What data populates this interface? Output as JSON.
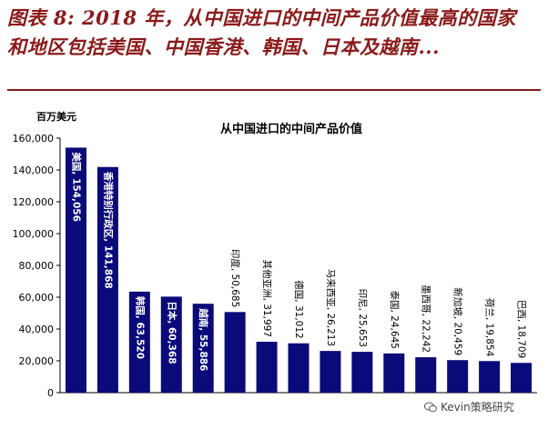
{
  "caption": {
    "line1": "图表 8: 2018 年，从中国进口的中间产品价值最高的国家",
    "line2": "和地区包括美国、中国香港、韩国、日本及越南..."
  },
  "watermark": {
    "text": "Kevin策略研究",
    "icon": "wechat-icon"
  },
  "colors": {
    "bar": "#0b0a7a",
    "caption": "#8b1a1a",
    "axis": "#000000"
  },
  "chart_data": {
    "type": "bar",
    "title": "从中国进口的中间产品价值",
    "ylabel": "百万美元",
    "xlabel": "",
    "ylim": [
      0,
      160000
    ],
    "yticks": [
      "0",
      "20,000",
      "40,000",
      "60,000",
      "80,000",
      "100,000",
      "120,000",
      "140,000",
      "160,000"
    ],
    "categories": [
      "美国",
      "香港特别行政区",
      "韩国",
      "日本",
      "越南",
      "印度",
      "其他亚洲",
      "德国",
      "马来西亚",
      "印尼",
      "泰国",
      "墨西哥",
      "新加坡",
      "荷兰",
      "巴西"
    ],
    "values": [
      154056,
      141868,
      63520,
      60368,
      55886,
      50685,
      31997,
      31012,
      26213,
      25653,
      24645,
      22242,
      20459,
      19854,
      18709
    ],
    "labels": [
      "美国, 154,056",
      "香港特别行政区, 141,868",
      "韩国, 63,520",
      "日本, 60,368",
      "越南, 55,886",
      "印度, 50,685",
      "其他亚洲, 31,997",
      "德国, 31,012",
      "马来西亚, 26,213",
      "印尼, 25,653",
      "泰国, 24,645",
      "墨西哥, 22,242",
      "新加坡, 20,459",
      "荷兰, 19,854",
      "巴西, 18,709"
    ],
    "grid": false,
    "legend": "none"
  }
}
